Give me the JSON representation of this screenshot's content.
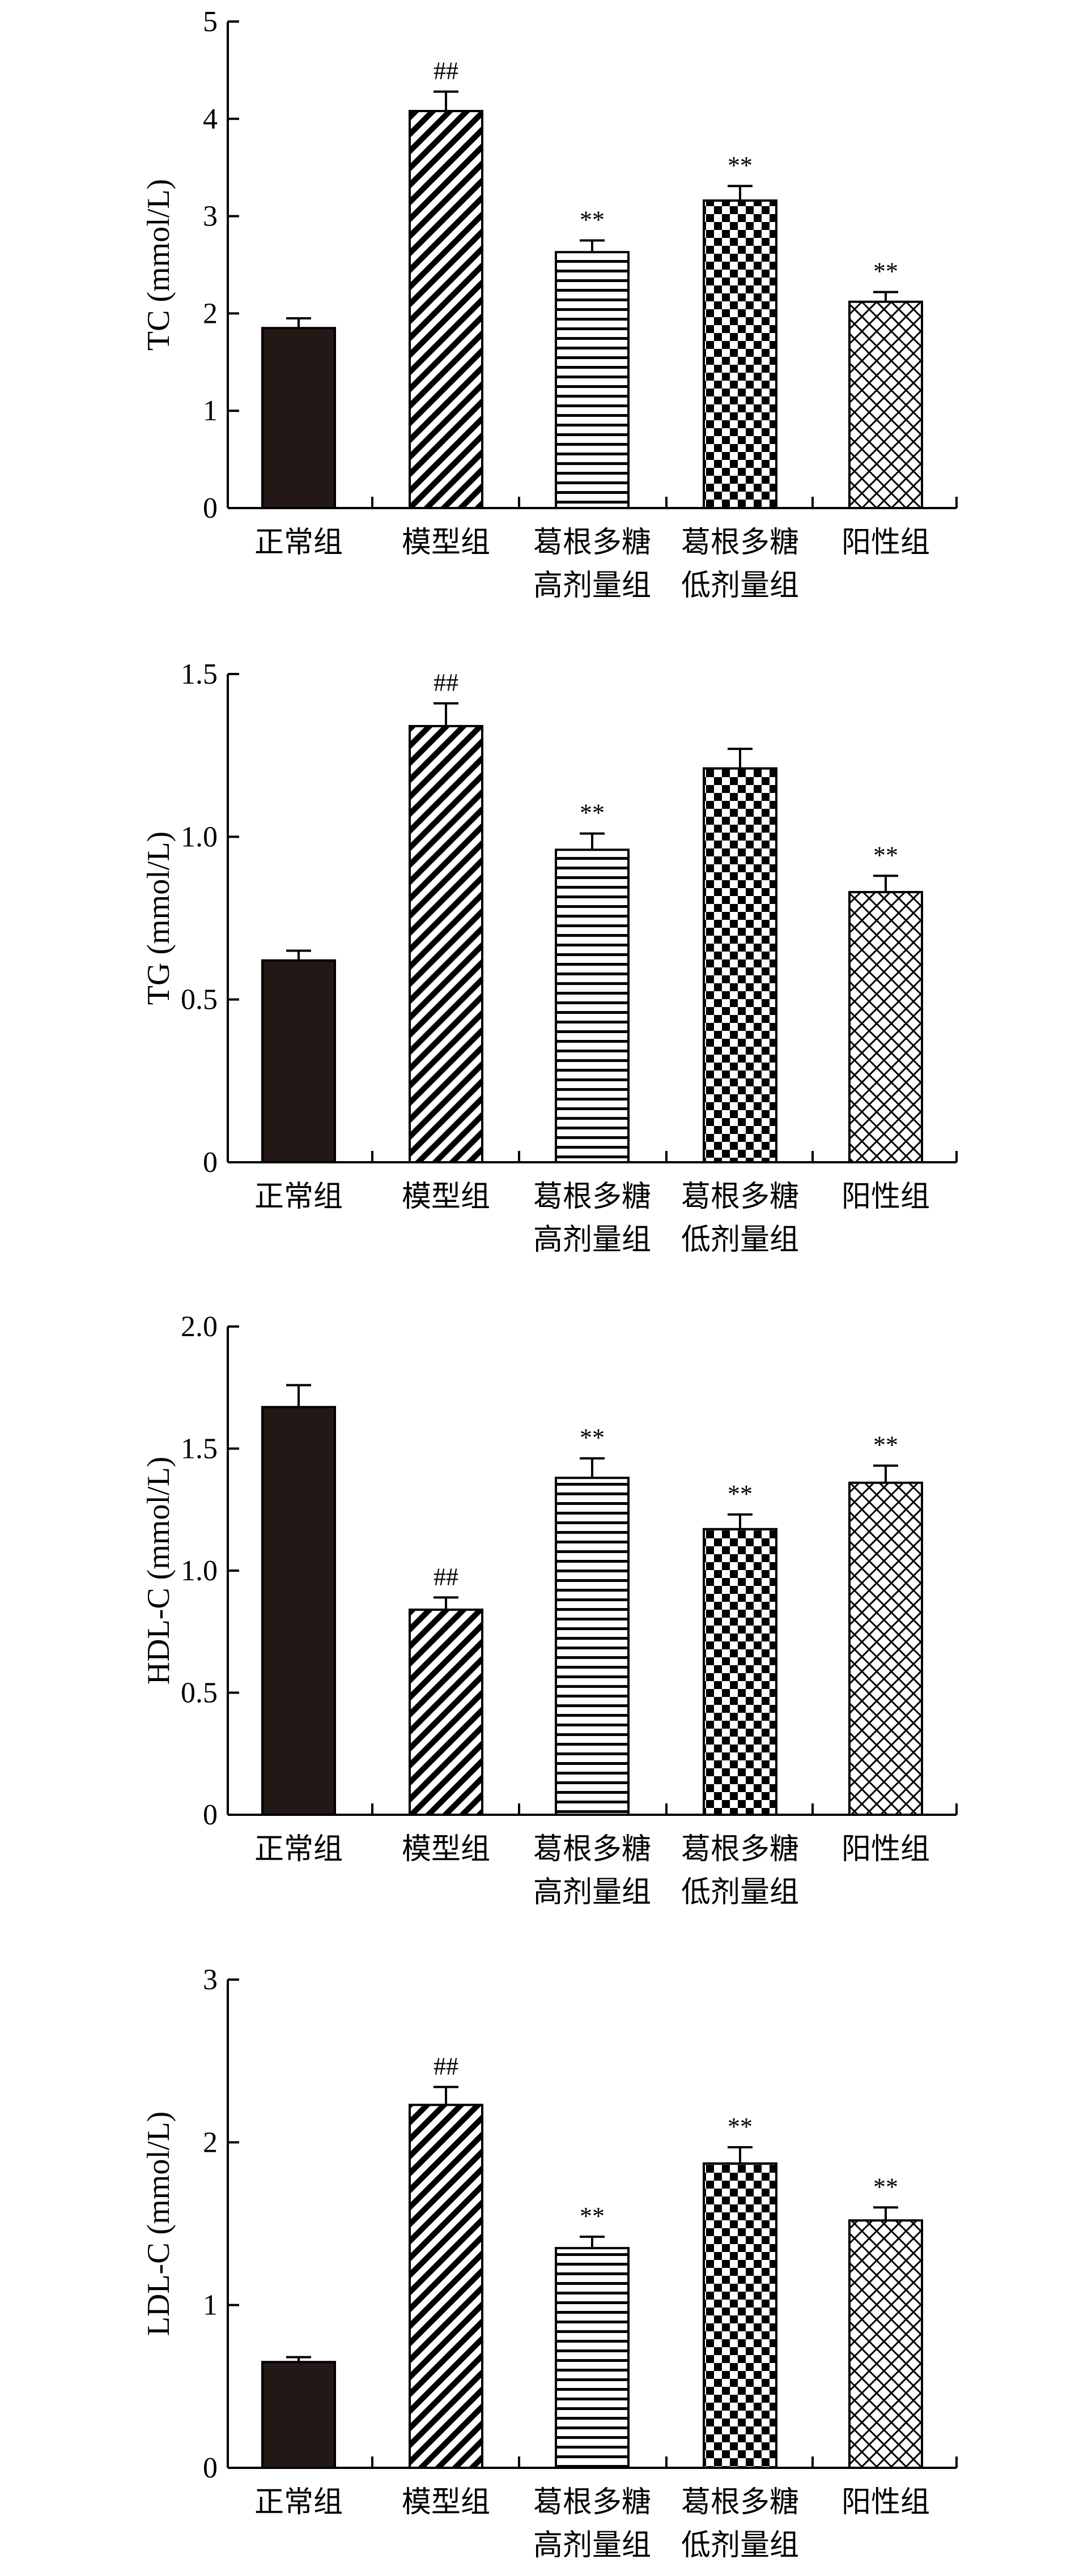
{
  "colors": {
    "ink": "#000000",
    "solid_fill": "#231815",
    "background": "#ffffff"
  },
  "categories": [
    [
      "正常组"
    ],
    [
      "模型组"
    ],
    [
      "葛根多糖",
      "高剂量组"
    ],
    [
      "葛根多糖",
      "低剂量组"
    ],
    [
      "阳性组"
    ]
  ],
  "chart_data": [
    {
      "type": "bar",
      "ylabel": "TC (mmol/L)",
      "ylim": [
        0,
        5
      ],
      "yticks": [
        0,
        1,
        2,
        3,
        4,
        5
      ],
      "ytick_labels": [
        "0",
        "1",
        "2",
        "3",
        "4",
        "5"
      ],
      "values": [
        1.85,
        4.08,
        2.63,
        3.16,
        2.12
      ],
      "errors": [
        0.1,
        0.2,
        0.12,
        0.15,
        0.1
      ],
      "annotations": [
        "",
        "##",
        "**",
        "**",
        "**"
      ],
      "patterns": [
        "solid",
        "diagonal",
        "horizontal",
        "checker",
        "crosshatch"
      ]
    },
    {
      "type": "bar",
      "ylabel": "TG (mmol/L)",
      "ylim": [
        0,
        1.5
      ],
      "yticks": [
        0,
        0.5,
        1.0,
        1.5
      ],
      "ytick_labels": [
        "0",
        "0.5",
        "1.0",
        "1.5"
      ],
      "values": [
        0.62,
        1.34,
        0.96,
        1.21,
        0.83
      ],
      "errors": [
        0.03,
        0.07,
        0.05,
        0.06,
        0.05
      ],
      "annotations": [
        "",
        "##",
        "**",
        "",
        "**"
      ],
      "patterns": [
        "solid",
        "diagonal",
        "horizontal",
        "checker",
        "crosshatch"
      ]
    },
    {
      "type": "bar",
      "ylabel": "HDL-C (mmol/L)",
      "ylim": [
        0,
        2.0
      ],
      "yticks": [
        0,
        0.5,
        1.0,
        1.5,
        2.0
      ],
      "ytick_labels": [
        "0",
        "0.5",
        "1.0",
        "1.5",
        "2.0"
      ],
      "values": [
        1.67,
        0.84,
        1.38,
        1.17,
        1.36
      ],
      "errors": [
        0.09,
        0.05,
        0.08,
        0.06,
        0.07
      ],
      "annotations": [
        "",
        "##",
        "**",
        "**",
        "**"
      ],
      "patterns": [
        "solid",
        "diagonal",
        "horizontal",
        "checker",
        "crosshatch"
      ]
    },
    {
      "type": "bar",
      "ylabel": "LDL-C (mmol/L)",
      "ylim": [
        0,
        3
      ],
      "yticks": [
        0,
        1,
        2,
        3
      ],
      "ytick_labels": [
        "0",
        "1",
        "2",
        "3"
      ],
      "values": [
        0.65,
        2.23,
        1.35,
        1.87,
        1.52
      ],
      "errors": [
        0.03,
        0.11,
        0.07,
        0.1,
        0.08
      ],
      "annotations": [
        "",
        "##",
        "**",
        "**",
        "**"
      ],
      "patterns": [
        "solid",
        "diagonal",
        "horizontal",
        "checker",
        "crosshatch"
      ]
    }
  ]
}
